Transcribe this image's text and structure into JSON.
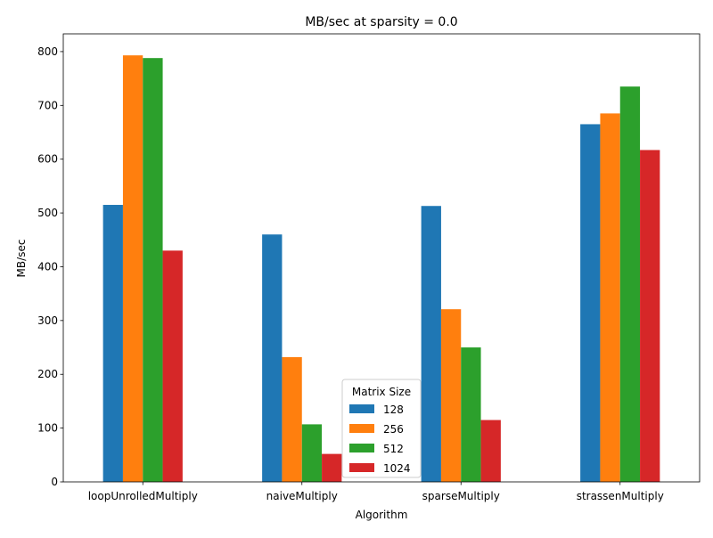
{
  "chart_data": {
    "type": "bar",
    "title": "MB/sec at sparsity = 0.0",
    "xlabel": "Algorithm",
    "ylabel": "MB/sec",
    "categories": [
      "loopUnrolledMultiply",
      "naiveMultiply",
      "sparseMultiply",
      "strassenMultiply"
    ],
    "series": [
      {
        "name": "128",
        "color": "#1f77b4",
        "values": [
          515,
          460,
          513,
          665
        ]
      },
      {
        "name": "256",
        "color": "#ff7f0e",
        "values": [
          793,
          232,
          321,
          685
        ]
      },
      {
        "name": "512",
        "color": "#2ca02c",
        "values": [
          788,
          107,
          250,
          735
        ]
      },
      {
        "name": "1024",
        "color": "#d62728",
        "values": [
          430,
          52,
          115,
          617
        ]
      }
    ],
    "ylim": [
      0,
      833
    ],
    "yticks": [
      0,
      100,
      200,
      300,
      400,
      500,
      600,
      700,
      800
    ],
    "grid": false,
    "legend": {
      "title": "Matrix Size",
      "placement": "lower-center"
    }
  }
}
